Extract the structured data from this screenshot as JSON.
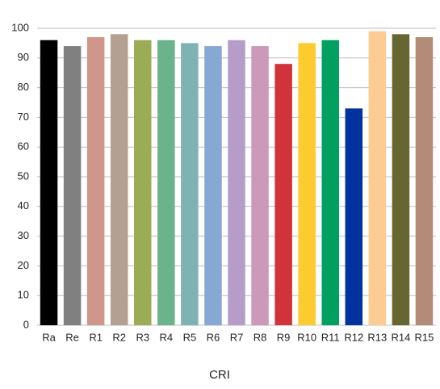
{
  "chart_data": {
    "type": "bar",
    "x_label": "CRI",
    "categories": [
      "Ra",
      "Re",
      "R1",
      "R2",
      "R3",
      "R4",
      "R5",
      "R6",
      "R7",
      "R8",
      "R9",
      "R10",
      "R11",
      "R12",
      "R13",
      "R14",
      "R15"
    ],
    "values": [
      96,
      94,
      97,
      98,
      96,
      96,
      95,
      94,
      96,
      94,
      88,
      95,
      96,
      73,
      99,
      98,
      97
    ],
    "colors": [
      "#000000",
      "#808080",
      "#d0968a",
      "#b4a090",
      "#9cab55",
      "#6bb38b",
      "#7fb3b3",
      "#86a8d3",
      "#b69dc9",
      "#cc99bb",
      "#d0343a",
      "#fccb2f",
      "#00a060",
      "#0033a0",
      "#fdcb94",
      "#666633",
      "#b48a78"
    ],
    "ylim": [
      0,
      100
    ],
    "yticks": [
      0,
      10,
      20,
      30,
      40,
      50,
      60,
      70,
      80,
      90,
      100
    ],
    "grid": true
  }
}
